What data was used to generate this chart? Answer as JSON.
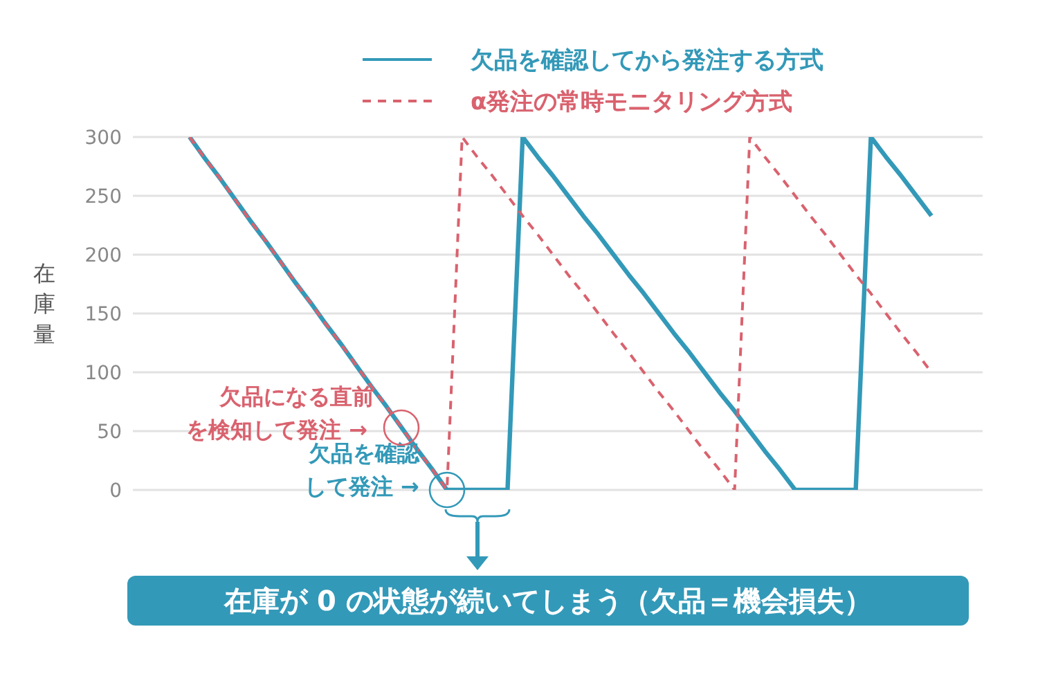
{
  "chart_data": {
    "type": "line",
    "ylabel": "在庫量",
    "categories": [
      null,
      null,
      null,
      null,
      null,
      null,
      null,
      null,
      null,
      null,
      null,
      null,
      null,
      null,
      null,
      null,
      null,
      null,
      null,
      null,
      null,
      null,
      null,
      null,
      null,
      null,
      null,
      null,
      null,
      null,
      null,
      null,
      null,
      null,
      null,
      null,
      null,
      null,
      null,
      null,
      null,
      null,
      null,
      null,
      null,
      null,
      null,
      null,
      null,
      null
    ],
    "ylim": [
      0,
      300
    ],
    "yticks": [
      0,
      50,
      100,
      150,
      200,
      250,
      300
    ],
    "tick_labels": "y",
    "grid": "y",
    "legend": "top",
    "marker": "none",
    "series": [
      {
        "name": "欠品を確認してから発注する方式",
        "color": "#3399b8",
        "line_style": "solid",
        "values": [
          300,
          282,
          265,
          247,
          229,
          212,
          194,
          176,
          159,
          141,
          124,
          106,
          88,
          71,
          53,
          35,
          18,
          0,
          0,
          0,
          0,
          0,
          300,
          283,
          267,
          250,
          233,
          217,
          200,
          183,
          167,
          150,
          133,
          117,
          100,
          83,
          67,
          50,
          33,
          17,
          0,
          0,
          0,
          0,
          0,
          300,
          283,
          267,
          250,
          233
        ]
      },
      {
        "name": "α発注の常時モニタリング方式",
        "color": "#d9626e",
        "line_style": "dashed",
        "values": [
          300,
          282,
          265,
          247,
          229,
          212,
          194,
          176,
          159,
          141,
          124,
          106,
          88,
          71,
          53,
          35,
          18,
          0,
          300,
          283,
          267,
          250,
          233,
          217,
          200,
          183,
          167,
          150,
          133,
          117,
          100,
          83,
          67,
          50,
          33,
          17,
          0,
          300,
          283,
          267,
          250,
          233,
          217,
          200,
          183,
          167,
          150,
          133,
          117,
          100
        ]
      }
    ],
    "annotations": [
      "欠品を確認して発注 →",
      "欠品になる直前を検知して発注 →",
      "在庫が 0 の状態が続いてしまう（欠品＝機会損失）"
    ]
  }
}
